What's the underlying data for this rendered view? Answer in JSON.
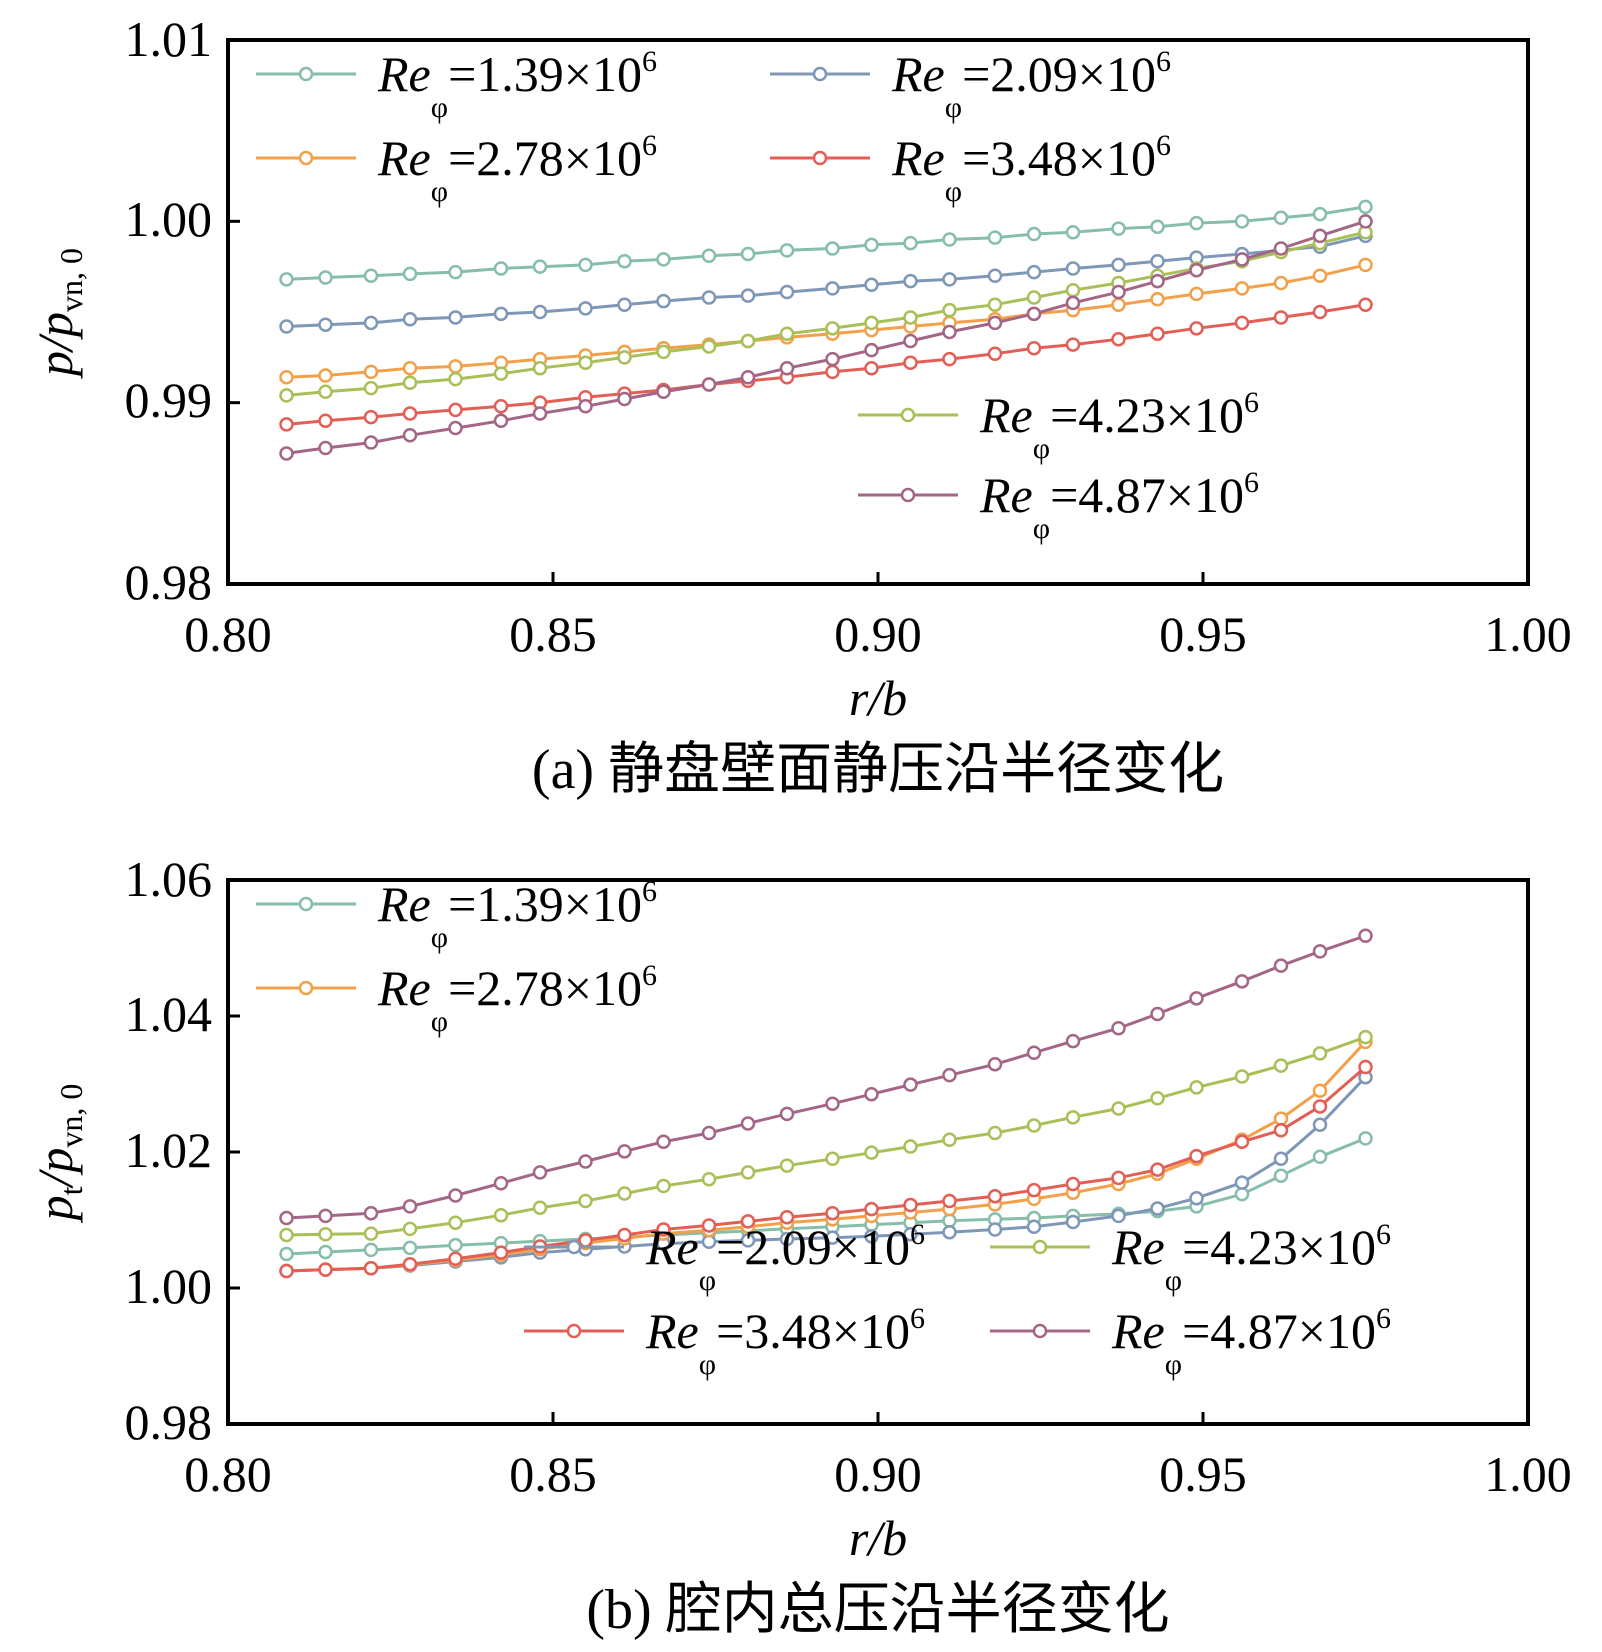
{
  "colors": {
    "Re_1.39": "#86bea7",
    "Re_2.09": "#7f97b7",
    "Re_2.78": "#f2a04a",
    "Re_3.48": "#e35f55",
    "Re_4.23": "#a9bf58",
    "Re_4.87": "#a46687"
  },
  "chart_data": [
    {
      "type": "line",
      "caption": "(a) 静盘壁面静压沿半径变化",
      "xlabel": "r/b",
      "ylabel": "p/p",
      "ylabel_sub": "vn, 0",
      "xlim": [
        0.8,
        1.0
      ],
      "ylim": [
        0.98,
        1.01
      ],
      "xticks": [
        "0.80",
        "0.85",
        "0.90",
        "0.95",
        "1.00"
      ],
      "yticks": [
        "0.98",
        "0.99",
        "1.00",
        "1.01"
      ],
      "x": [
        0.809,
        0.815,
        0.822,
        0.828,
        0.835,
        0.842,
        0.848,
        0.855,
        0.861,
        0.867,
        0.874,
        0.88,
        0.886,
        0.893,
        0.899,
        0.905,
        0.911,
        0.918,
        0.924,
        0.93,
        0.937,
        0.943,
        0.949,
        0.956,
        0.962,
        0.968,
        0.975
      ],
      "series": [
        {
          "name": "Re",
          "sub": "φ",
          "value": "=1.39×10",
          "exp": "6",
          "key": "Re_1.39",
          "values": [
            0.9968,
            0.9969,
            0.997,
            0.9971,
            0.9972,
            0.9974,
            0.9975,
            0.9976,
            0.9978,
            0.9979,
            0.9981,
            0.9982,
            0.9984,
            0.9985,
            0.9987,
            0.9988,
            0.999,
            0.9991,
            0.9993,
            0.9994,
            0.9996,
            0.9997,
            0.9999,
            1.0,
            1.0002,
            1.0004,
            1.0008
          ]
        },
        {
          "name": "Re",
          "sub": "φ",
          "value": "=2.09×10",
          "exp": "6",
          "key": "Re_2.09",
          "values": [
            0.9942,
            0.9943,
            0.9944,
            0.9946,
            0.9947,
            0.9949,
            0.995,
            0.9952,
            0.9954,
            0.9956,
            0.9958,
            0.9959,
            0.9961,
            0.9963,
            0.9965,
            0.9967,
            0.9968,
            0.997,
            0.9972,
            0.9974,
            0.9976,
            0.9978,
            0.998,
            0.9982,
            0.9984,
            0.9986,
            0.9992
          ]
        },
        {
          "name": "Re",
          "sub": "φ",
          "value": "=2.78×10",
          "exp": "6",
          "key": "Re_2.78",
          "values": [
            0.9914,
            0.9915,
            0.9917,
            0.9919,
            0.992,
            0.9922,
            0.9924,
            0.9926,
            0.9928,
            0.993,
            0.9932,
            0.9934,
            0.9936,
            0.9938,
            0.994,
            0.9942,
            0.9944,
            0.9946,
            0.9949,
            0.9951,
            0.9954,
            0.9957,
            0.996,
            0.9963,
            0.9966,
            0.997,
            0.9976
          ]
        },
        {
          "name": "Re",
          "sub": "φ",
          "value": "=3.48×10",
          "exp": "6",
          "key": "Re_3.48",
          "values": [
            0.9888,
            0.989,
            0.9892,
            0.9894,
            0.9896,
            0.9898,
            0.99,
            0.9903,
            0.9905,
            0.9907,
            0.991,
            0.9912,
            0.9914,
            0.9917,
            0.9919,
            0.9922,
            0.9924,
            0.9927,
            0.993,
            0.9932,
            0.9935,
            0.9938,
            0.9941,
            0.9944,
            0.9947,
            0.995,
            0.9954
          ]
        },
        {
          "name": "Re",
          "sub": "φ",
          "value": "=4.23×10",
          "exp": "6",
          "key": "Re_4.23",
          "values": [
            0.9904,
            0.9906,
            0.9908,
            0.9911,
            0.9913,
            0.9916,
            0.9919,
            0.9922,
            0.9925,
            0.9928,
            0.9931,
            0.9934,
            0.9938,
            0.9941,
            0.9944,
            0.9947,
            0.9951,
            0.9954,
            0.9958,
            0.9962,
            0.9966,
            0.997,
            0.9974,
            0.9978,
            0.9983,
            0.9988,
            0.9994
          ]
        },
        {
          "name": "Re",
          "sub": "φ",
          "value": "=4.87×10",
          "exp": "6",
          "key": "Re_4.87",
          "values": [
            0.9872,
            0.9875,
            0.9878,
            0.9882,
            0.9886,
            0.989,
            0.9894,
            0.9898,
            0.9902,
            0.9906,
            0.991,
            0.9914,
            0.9919,
            0.9924,
            0.9929,
            0.9934,
            0.9939,
            0.9944,
            0.9949,
            0.9955,
            0.9961,
            0.9967,
            0.9973,
            0.9979,
            0.9985,
            0.9992,
            1.0
          ]
        }
      ]
    },
    {
      "type": "line",
      "caption": "(b) 腔内总压沿半径变化",
      "xlabel": "r/b",
      "ylabel": "p",
      "ylabel_t": "t",
      "ylabel_mid": "/p",
      "ylabel_sub": "vn, 0",
      "xlim": [
        0.8,
        1.0
      ],
      "ylim": [
        0.98,
        1.06
      ],
      "xticks": [
        "0.80",
        "0.85",
        "0.90",
        "0.95",
        "1.00"
      ],
      "yticks": [
        "0.98",
        "1.00",
        "1.02",
        "1.04",
        "1.06"
      ],
      "x": [
        0.809,
        0.815,
        0.822,
        0.828,
        0.835,
        0.842,
        0.848,
        0.855,
        0.861,
        0.867,
        0.874,
        0.88,
        0.886,
        0.893,
        0.899,
        0.905,
        0.911,
        0.918,
        0.924,
        0.93,
        0.937,
        0.943,
        0.949,
        0.956,
        0.962,
        0.968,
        0.975
      ],
      "series": [
        {
          "name": "Re",
          "sub": "φ",
          "value": "=1.39×10",
          "exp": "6",
          "key": "Re_1.39",
          "values": [
            1.005,
            1.0053,
            1.0056,
            1.0059,
            1.0063,
            1.0066,
            1.0069,
            1.0072,
            1.0075,
            1.0078,
            1.0081,
            1.0084,
            1.0087,
            1.009,
            1.0093,
            1.0096,
            1.0099,
            1.0101,
            1.0103,
            1.0106,
            1.0109,
            1.0113,
            1.012,
            1.0138,
            1.0165,
            1.0193,
            1.022
          ]
        },
        {
          "name": "Re",
          "sub": "φ",
          "value": "=2.09×10",
          "exp": "6",
          "key": "Re_2.09",
          "values": [
            1.0025,
            1.0027,
            1.0029,
            1.0033,
            1.0039,
            1.0045,
            1.0052,
            1.0057,
            1.0061,
            1.0065,
            1.0068,
            1.007,
            1.0072,
            1.0074,
            1.0076,
            1.0079,
            1.0082,
            1.0086,
            1.009,
            1.0097,
            1.0106,
            1.0117,
            1.0132,
            1.0155,
            1.019,
            1.024,
            1.031
          ]
        },
        {
          "name": "Re",
          "sub": "φ",
          "value": "=2.78×10",
          "exp": "6",
          "key": "Re_2.78",
          "values": [
            1.0025,
            1.0027,
            1.0029,
            1.0034,
            1.0041,
            1.0049,
            1.0057,
            1.0066,
            1.0073,
            1.008,
            1.0085,
            1.009,
            1.0096,
            1.0101,
            1.0106,
            1.0111,
            1.0116,
            1.0123,
            1.0131,
            1.014,
            1.0153,
            1.0168,
            1.019,
            1.0218,
            1.0249,
            1.029,
            1.0362
          ]
        },
        {
          "name": "Re",
          "sub": "φ",
          "value": "=3.48×10",
          "exp": "6",
          "key": "Re_3.48",
          "values": [
            1.0025,
            1.0027,
            1.0029,
            1.0035,
            1.0043,
            1.0052,
            1.0061,
            1.007,
            1.0078,
            1.0086,
            1.0092,
            1.0098,
            1.0104,
            1.011,
            1.0116,
            1.0122,
            1.0128,
            1.0135,
            1.0144,
            1.0153,
            1.0162,
            1.0174,
            1.0194,
            1.0215,
            1.0232,
            1.0267,
            1.0325
          ]
        },
        {
          "name": "Re",
          "sub": "φ",
          "value": "=4.23×10",
          "exp": "6",
          "key": "Re_4.23",
          "values": [
            1.0078,
            1.0079,
            1.008,
            1.0087,
            1.0096,
            1.0107,
            1.0118,
            1.0128,
            1.0139,
            1.015,
            1.016,
            1.017,
            1.018,
            1.019,
            1.0199,
            1.0208,
            1.0218,
            1.0228,
            1.0239,
            1.0251,
            1.0264,
            1.0279,
            1.0295,
            1.0311,
            1.0327,
            1.0345,
            1.0369
          ]
        },
        {
          "name": "Re",
          "sub": "φ",
          "value": "=4.87×10",
          "exp": "6",
          "key": "Re_4.87",
          "values": [
            1.0103,
            1.0106,
            1.011,
            1.012,
            1.0136,
            1.0154,
            1.017,
            1.0186,
            1.0201,
            1.0215,
            1.0228,
            1.0242,
            1.0256,
            1.0271,
            1.0285,
            1.0299,
            1.0313,
            1.0329,
            1.0346,
            1.0363,
            1.0382,
            1.0403,
            1.0426,
            1.0451,
            1.0474,
            1.0495,
            1.0518
          ]
        }
      ]
    }
  ]
}
